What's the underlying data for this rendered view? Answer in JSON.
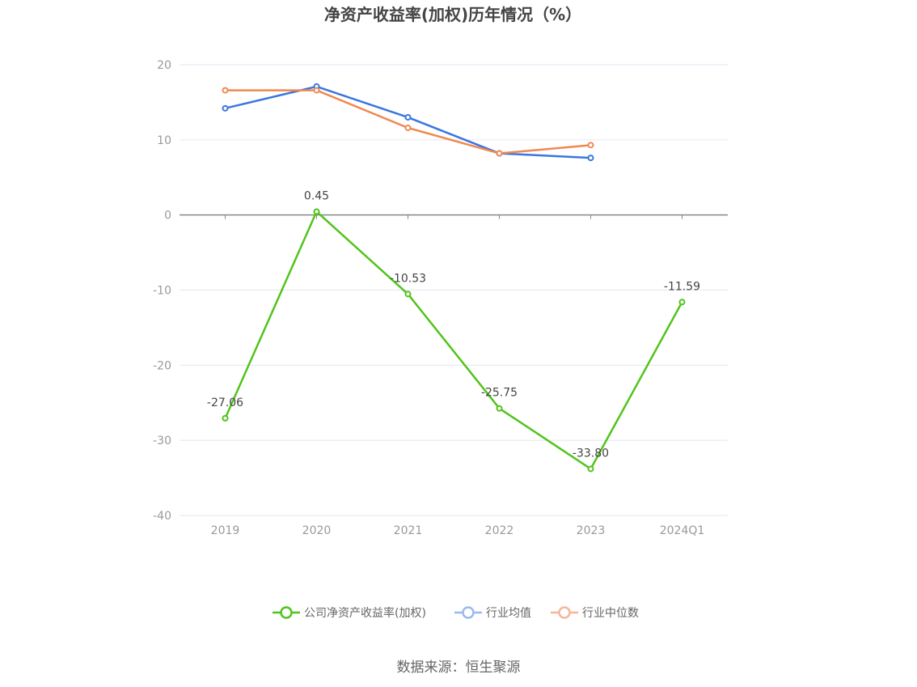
{
  "chart_data": {
    "type": "line",
    "title": "净资产收益率(加权)历年情况（%）",
    "categories": [
      "2019",
      "2020",
      "2021",
      "2022",
      "2023",
      "2024Q1"
    ],
    "ylim": [
      -40,
      20
    ],
    "yticks": [
      20,
      10,
      0,
      -10,
      -20,
      -30,
      -40
    ],
    "grid": true,
    "legend_position": "bottom",
    "series": [
      {
        "name": "公司净资产收益率(加权)",
        "color": "#52c41a",
        "values": [
          -27.06,
          0.45,
          -10.53,
          -25.75,
          -33.8,
          -11.59
        ],
        "labels": [
          "-27.06",
          "0.45",
          "-10.53",
          "-25.75",
          "-33.80",
          "-11.59"
        ]
      },
      {
        "name": "行业均值",
        "color": "#3a76e0",
        "values": [
          14.2,
          17.1,
          13.0,
          8.2,
          7.6,
          null
        ]
      },
      {
        "name": "行业中位数",
        "color": "#f08850",
        "values": [
          16.6,
          16.6,
          11.6,
          8.2,
          9.3,
          null
        ]
      }
    ],
    "legend_colors": [
      "#52c41a",
      "#9bbaf0",
      "#f5b79a"
    ],
    "source": "数据来源：恒生聚源"
  }
}
